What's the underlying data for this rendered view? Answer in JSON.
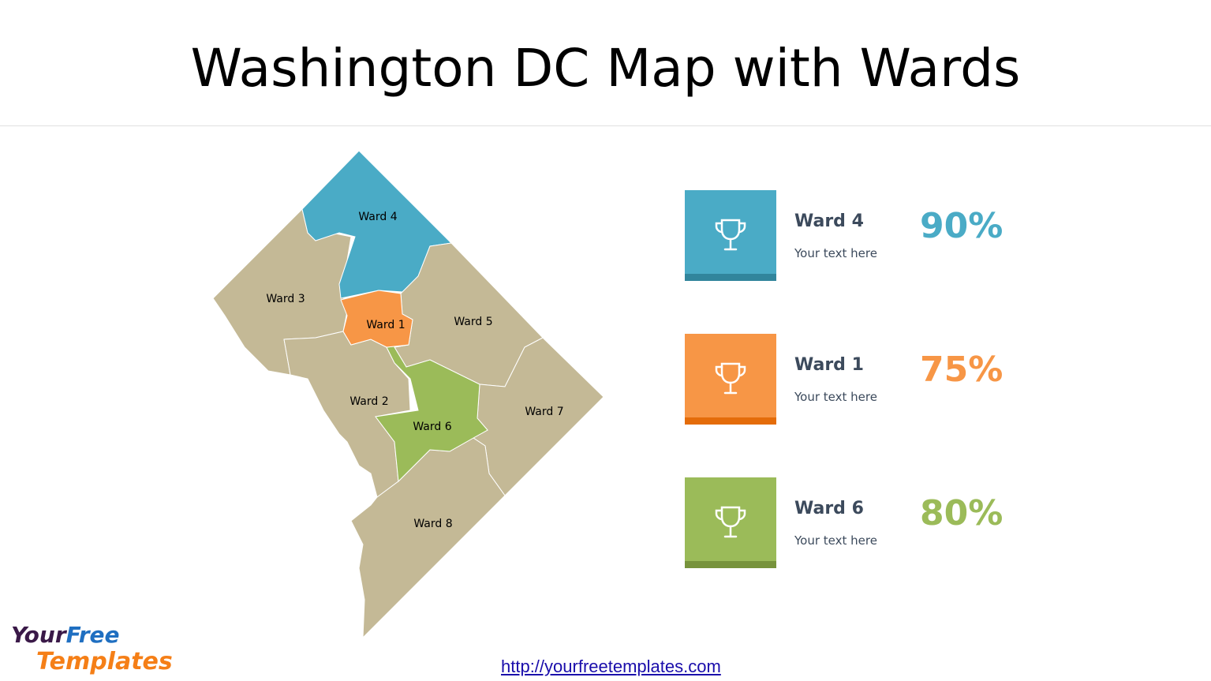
{
  "title": "Washington DC Map with Wards",
  "map": {
    "labels": [
      "Ward 4",
      "Ward 3",
      "Ward 1",
      "Ward 5",
      "Ward 2",
      "Ward 6",
      "Ward 7",
      "Ward 8"
    ],
    "colors": {
      "highlight_ward4": "#4aabc6",
      "highlight_ward1": "#f79646",
      "highlight_ward6": "#9bbb59",
      "default": "#c4b996"
    }
  },
  "cards": [
    {
      "ward": "Ward 4",
      "text": "Your text here",
      "percent": "90%",
      "color": "#4aabc6",
      "bar_color": "#31859c",
      "icon": "trophy-icon"
    },
    {
      "ward": "Ward 1",
      "text": "Your text here",
      "percent": "75%",
      "color": "#f79646",
      "bar_color": "#e46c0a",
      "icon": "trophy-icon"
    },
    {
      "ward": "Ward 6",
      "text": "Your text here",
      "percent": "80%",
      "color": "#9bbb59",
      "bar_color": "#77933c",
      "icon": "trophy-icon"
    }
  ],
  "footer": {
    "link": "http://yourfreetemplates.com",
    "logo": "YourFreeTemplates"
  }
}
